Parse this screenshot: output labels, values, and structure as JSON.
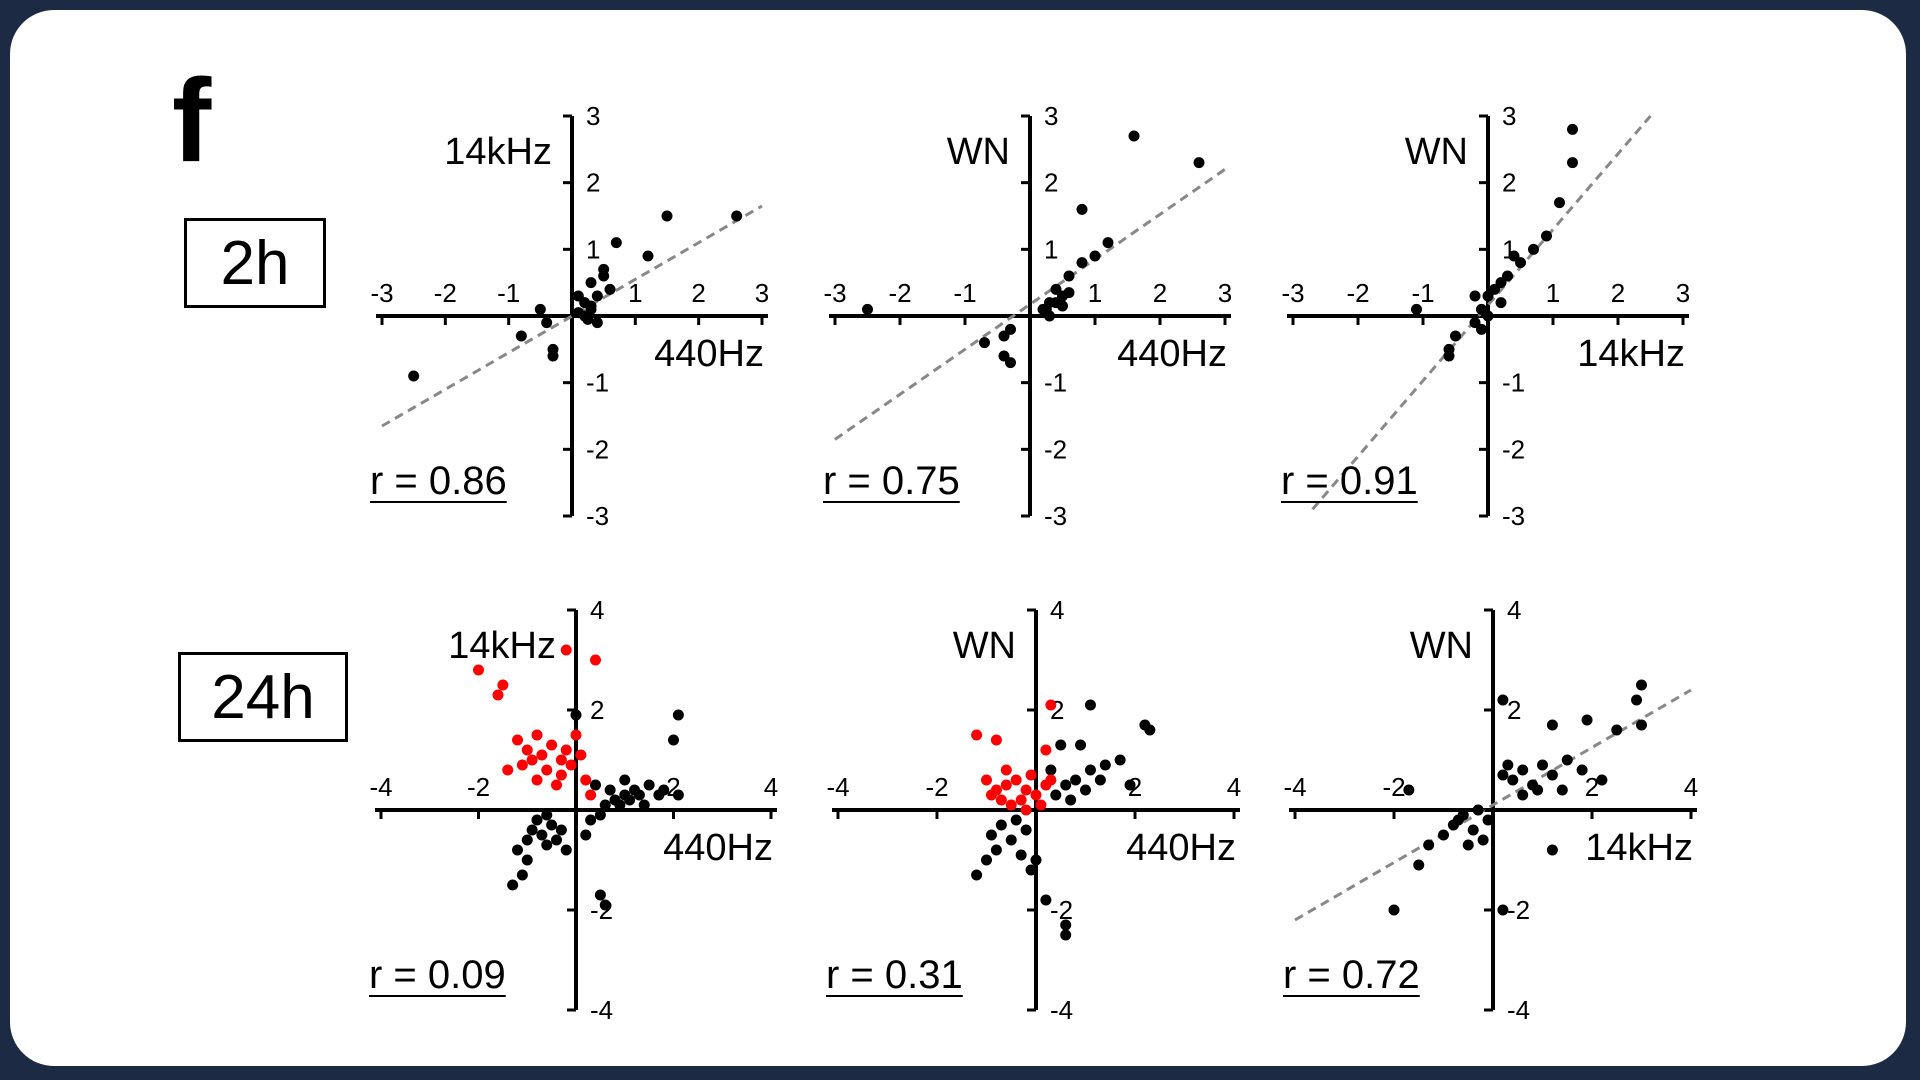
{
  "panel_label": "f",
  "row_labels": {
    "row_2h": "2h",
    "row_24h": "24h"
  },
  "colors": {
    "points": "#000000",
    "highlight": "#ff0000",
    "fit": "#888888",
    "frame": "#1c2a44"
  },
  "chart_data": [
    {
      "type": "scatter",
      "row": "2h",
      "xlabel": "440Hz",
      "ylabel": "14kHz",
      "annotation": "r = 0.86",
      "xlim": [
        -3,
        3
      ],
      "ylim": [
        -3,
        3
      ],
      "xticks": [
        "-3",
        "-2",
        "-1",
        "1",
        "2",
        "3"
      ],
      "yticks": [
        "3",
        "2",
        "1",
        "-1",
        "-2",
        "-3"
      ],
      "fit_line": [
        [
          -3,
          -1.65
        ],
        [
          3,
          1.65
        ]
      ],
      "series": [
        {
          "points": [
            [
              -2.5,
              -0.9
            ],
            [
              -0.4,
              -0.1
            ],
            [
              -0.3,
              -0.5
            ],
            [
              -0.3,
              -0.6
            ],
            [
              -0.5,
              0.1
            ],
            [
              -0.8,
              -0.3
            ],
            [
              0.1,
              0.3
            ],
            [
              0.2,
              0.2
            ],
            [
              0.3,
              0.1
            ],
            [
              0.4,
              0.3
            ],
            [
              0.3,
              0.5
            ],
            [
              0.5,
              0.6
            ],
            [
              0.5,
              0.7
            ],
            [
              0.7,
              1.1
            ],
            [
              0.6,
              0.4
            ],
            [
              1.2,
              0.9
            ],
            [
              1.5,
              1.5
            ],
            [
              2.6,
              1.5
            ],
            [
              0.2,
              0.0
            ],
            [
              0.4,
              -0.1
            ],
            [
              0.3,
              0.15
            ],
            [
              0.1,
              0.05
            ],
            [
              0.25,
              -0.05
            ]
          ]
        }
      ]
    },
    {
      "type": "scatter",
      "row": "2h",
      "xlabel": "440Hz",
      "ylabel": "WN",
      "annotation": "r = 0.75",
      "xlim": [
        -3,
        3
      ],
      "ylim": [
        -3,
        3
      ],
      "xticks": [
        "-3",
        "-2",
        "-1",
        "1",
        "2",
        "3"
      ],
      "yticks": [
        "3",
        "2",
        "1",
        "-1",
        "-2",
        "-3"
      ],
      "fit_line": [
        [
          -3,
          -1.85
        ],
        [
          3,
          2.2
        ]
      ],
      "series": [
        {
          "points": [
            [
              -2.5,
              0.1
            ],
            [
              -0.7,
              -0.4
            ],
            [
              -0.4,
              -0.6
            ],
            [
              -0.3,
              -0.7
            ],
            [
              -0.3,
              -0.2
            ],
            [
              -0.4,
              -0.3
            ],
            [
              0.2,
              0.1
            ],
            [
              0.3,
              0.2
            ],
            [
              0.4,
              0.4
            ],
            [
              0.5,
              0.3
            ],
            [
              0.6,
              0.6
            ],
            [
              0.8,
              0.8
            ],
            [
              1.0,
              0.9
            ],
            [
              1.2,
              1.1
            ],
            [
              0.8,
              1.6
            ],
            [
              1.6,
              2.7
            ],
            [
              2.6,
              2.3
            ],
            [
              0.4,
              0.2
            ],
            [
              0.3,
              0.0
            ],
            [
              0.5,
              0.15
            ],
            [
              0.6,
              0.35
            ],
            [
              0.25,
              0.1
            ]
          ]
        }
      ]
    },
    {
      "type": "scatter",
      "row": "2h",
      "xlabel": "14kHz",
      "ylabel": "WN",
      "annotation": "r = 0.91",
      "xlim": [
        -3,
        3
      ],
      "ylim": [
        -3,
        3
      ],
      "xticks": [
        "-3",
        "-2",
        "-1",
        "1",
        "2",
        "3"
      ],
      "yticks": [
        "3",
        "2",
        "1",
        "-1",
        "-2",
        "-3"
      ],
      "fit_line": [
        [
          -2.7,
          -2.9
        ],
        [
          2.5,
          3.0
        ]
      ],
      "series": [
        {
          "points": [
            [
              -1.1,
              0.1
            ],
            [
              -0.6,
              -0.5
            ],
            [
              -0.5,
              -0.3
            ],
            [
              -0.6,
              -0.6
            ],
            [
              -0.2,
              -0.1
            ],
            [
              -0.1,
              -0.2
            ],
            [
              0.0,
              0.3
            ],
            [
              0.1,
              0.4
            ],
            [
              0.2,
              0.5
            ],
            [
              0.3,
              0.6
            ],
            [
              0.5,
              0.8
            ],
            [
              0.7,
              1.0
            ],
            [
              0.9,
              1.2
            ],
            [
              1.1,
              1.7
            ],
            [
              1.3,
              2.3
            ],
            [
              1.3,
              2.8
            ],
            [
              0.4,
              0.9
            ],
            [
              -0.2,
              0.3
            ],
            [
              0.0,
              0.0
            ],
            [
              0.2,
              0.2
            ],
            [
              -0.1,
              0.1
            ]
          ]
        }
      ]
    },
    {
      "type": "scatter",
      "row": "24h",
      "xlabel": "440Hz",
      "ylabel": "14kHz",
      "annotation": "r = 0.09",
      "xlim": [
        -4,
        4
      ],
      "ylim": [
        -4,
        4
      ],
      "xticks": [
        "-4",
        "-2",
        "2",
        "4"
      ],
      "yticks": [
        "4",
        "2",
        "-2",
        "-4"
      ],
      "fit_line": null,
      "series": [
        {
          "name": "",
          "color_key": "points",
          "points": [
            [
              -1.3,
              -1.5
            ],
            [
              -1.1,
              -1.3
            ],
            [
              -1.0,
              -1.0
            ],
            [
              -1.2,
              -0.8
            ],
            [
              -1.0,
              -0.6
            ],
            [
              -0.9,
              -0.4
            ],
            [
              -0.7,
              -0.5
            ],
            [
              -0.6,
              -0.7
            ],
            [
              -0.5,
              -0.3
            ],
            [
              -0.8,
              -0.2
            ],
            [
              -0.6,
              -0.1
            ],
            [
              -0.4,
              -0.6
            ],
            [
              -0.3,
              -0.4
            ],
            [
              -0.2,
              -0.8
            ],
            [
              0.2,
              -0.5
            ],
            [
              0.3,
              -0.2
            ],
            [
              0.5,
              -0.1
            ],
            [
              0.6,
              0.1
            ],
            [
              0.8,
              0.2
            ],
            [
              1.0,
              0.3
            ],
            [
              1.2,
              0.4
            ],
            [
              1.5,
              0.5
            ],
            [
              1.8,
              0.4
            ],
            [
              2.1,
              0.3
            ],
            [
              1.4,
              0.1
            ],
            [
              0.9,
              0.1
            ],
            [
              0.7,
              0.4
            ],
            [
              1.1,
              0.2
            ],
            [
              2.0,
              1.4
            ],
            [
              2.1,
              1.9
            ],
            [
              0.5,
              -1.7
            ],
            [
              0.6,
              -1.9
            ],
            [
              0.0,
              1.9
            ],
            [
              0.4,
              0.5
            ],
            [
              1.7,
              0.3
            ],
            [
              1.0,
              0.6
            ],
            [
              1.3,
              0.3
            ]
          ]
        },
        {
          "name": "",
          "color_key": "highlight",
          "points": [
            [
              -2.0,
              2.8
            ],
            [
              -1.5,
              2.5
            ],
            [
              -1.6,
              2.3
            ],
            [
              0.4,
              3.0
            ],
            [
              -0.2,
              3.2
            ],
            [
              -1.2,
              1.4
            ],
            [
              -1.0,
              1.2
            ],
            [
              -0.8,
              1.5
            ],
            [
              -0.5,
              1.3
            ],
            [
              -0.3,
              1.0
            ],
            [
              -0.1,
              0.9
            ],
            [
              0.0,
              1.5
            ],
            [
              -0.6,
              0.8
            ],
            [
              -1.4,
              0.8
            ],
            [
              -0.8,
              0.6
            ],
            [
              -0.4,
              0.5
            ],
            [
              0.2,
              0.6
            ],
            [
              0.3,
              0.3
            ],
            [
              -0.9,
              1.0
            ],
            [
              -0.2,
              1.2
            ],
            [
              -0.7,
              1.1
            ],
            [
              -1.1,
              0.9
            ],
            [
              -0.3,
              0.7
            ],
            [
              0.1,
              1.1
            ]
          ]
        }
      ]
    },
    {
      "type": "scatter",
      "row": "24h",
      "xlabel": "440Hz",
      "ylabel": "WN",
      "annotation": "r = 0.31",
      "xlim": [
        -4,
        4
      ],
      "ylim": [
        -4,
        4
      ],
      "xticks": [
        "-4",
        "-2",
        "2",
        "4"
      ],
      "yticks": [
        "4",
        "2",
        "-2",
        "-4"
      ],
      "fit_line": null,
      "series": [
        {
          "name": "",
          "color_key": "points",
          "points": [
            [
              -1.2,
              -1.3
            ],
            [
              -1.0,
              -1.0
            ],
            [
              -0.8,
              -0.8
            ],
            [
              -0.9,
              -0.5
            ],
            [
              -0.7,
              -0.3
            ],
            [
              -0.5,
              -0.6
            ],
            [
              -0.3,
              -0.9
            ],
            [
              -0.1,
              -1.2
            ],
            [
              0.0,
              -1.0
            ],
            [
              -0.2,
              -0.4
            ],
            [
              -0.4,
              -0.2
            ],
            [
              0.4,
              0.3
            ],
            [
              0.6,
              0.5
            ],
            [
              0.8,
              0.6
            ],
            [
              1.1,
              0.8
            ],
            [
              1.4,
              0.9
            ],
            [
              1.7,
              1.0
            ],
            [
              1.0,
              0.4
            ],
            [
              0.7,
              0.2
            ],
            [
              1.3,
              0.6
            ],
            [
              0.5,
              1.3
            ],
            [
              0.9,
              1.3
            ],
            [
              1.1,
              2.1
            ],
            [
              2.2,
              1.7
            ],
            [
              2.3,
              1.6
            ],
            [
              0.6,
              -2.3
            ],
            [
              0.6,
              -2.5
            ],
            [
              0.2,
              -1.8
            ],
            [
              1.9,
              0.5
            ],
            [
              0.3,
              0.8
            ]
          ]
        },
        {
          "name": "",
          "color_key": "highlight",
          "points": [
            [
              -1.2,
              1.5
            ],
            [
              -0.8,
              1.4
            ],
            [
              0.2,
              1.2
            ],
            [
              0.3,
              2.1
            ],
            [
              -1.0,
              0.6
            ],
            [
              -0.8,
              0.4
            ],
            [
              -0.6,
              0.5
            ],
            [
              -0.4,
              0.6
            ],
            [
              -0.2,
              0.4
            ],
            [
              0.0,
              0.3
            ],
            [
              0.2,
              0.5
            ],
            [
              -0.7,
              0.2
            ],
            [
              -0.5,
              0.1
            ],
            [
              -0.3,
              0.2
            ],
            [
              0.1,
              0.1
            ],
            [
              -0.9,
              0.3
            ],
            [
              -0.1,
              0.7
            ],
            [
              0.3,
              0.6
            ],
            [
              -0.6,
              0.8
            ],
            [
              -0.2,
              0.0
            ]
          ]
        }
      ]
    },
    {
      "type": "scatter",
      "row": "24h",
      "xlabel": "14kHz",
      "ylabel": "WN",
      "annotation": "r = 0.72",
      "xlim": [
        -4,
        4
      ],
      "ylim": [
        -4,
        4
      ],
      "xticks": [
        "-4",
        "-2",
        "2",
        "4"
      ],
      "yticks": [
        "4",
        "2",
        "-2",
        "-4"
      ],
      "fit_line": [
        [
          -4,
          -2.2
        ],
        [
          4,
          2.4
        ]
      ],
      "series": [
        {
          "points": [
            [
              -2.0,
              -2.0
            ],
            [
              -1.5,
              -1.1
            ],
            [
              -1.3,
              -0.7
            ],
            [
              -1.0,
              -0.5
            ],
            [
              -0.8,
              -0.3
            ],
            [
              -0.6,
              -0.1
            ],
            [
              -0.4,
              -0.4
            ],
            [
              -0.2,
              -0.6
            ],
            [
              -0.1,
              -0.2
            ],
            [
              -0.3,
              0.0
            ],
            [
              -0.7,
              -0.2
            ],
            [
              0.2,
              0.7
            ],
            [
              0.4,
              0.6
            ],
            [
              0.6,
              0.8
            ],
            [
              0.8,
              0.5
            ],
            [
              1.0,
              0.9
            ],
            [
              1.2,
              0.7
            ],
            [
              1.5,
              1.0
            ],
            [
              1.8,
              0.8
            ],
            [
              2.2,
              0.6
            ],
            [
              2.5,
              1.6
            ],
            [
              3.0,
              1.7
            ],
            [
              2.9,
              2.2
            ],
            [
              3.0,
              2.5
            ],
            [
              1.9,
              1.8
            ],
            [
              1.2,
              1.7
            ],
            [
              0.2,
              2.2
            ],
            [
              1.2,
              -0.8
            ],
            [
              0.2,
              -2.0
            ],
            [
              -1.7,
              0.4
            ],
            [
              0.6,
              0.3
            ],
            [
              0.9,
              0.4
            ],
            [
              -0.5,
              -0.7
            ],
            [
              0.3,
              0.9
            ],
            [
              1.4,
              0.4
            ]
          ]
        }
      ]
    }
  ]
}
